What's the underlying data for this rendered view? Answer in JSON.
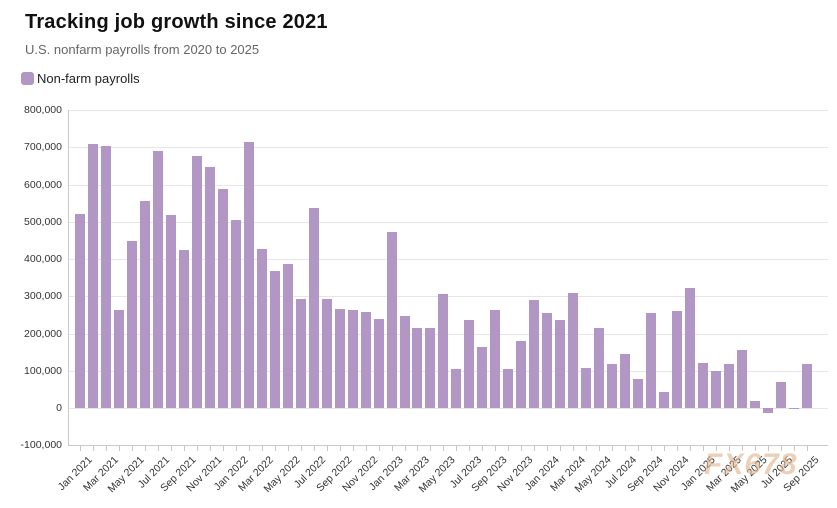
{
  "header": {
    "title": "Tracking job growth since 2021",
    "subtitle": "U.S. nonfarm payrolls from 2020 to 2025"
  },
  "legend": {
    "label": "Non-farm payrolls"
  },
  "watermark": "FX678",
  "colors": {
    "bar": "#b297c5",
    "grid": "#e6e6e6",
    "axis": "#c9c9c9",
    "watermark": "#e2b289"
  },
  "chart_data": {
    "type": "bar",
    "title": "Tracking job growth since 2021",
    "subtitle": "U.S. nonfarm payrolls from 2020 to 2025",
    "xlabel": "",
    "ylabel": "",
    "ylim": [
      -100000,
      800000
    ],
    "ytick_step": 100000,
    "x_label_every": 2,
    "grid": true,
    "legend_position": "top-left",
    "bar_color": "#b297c5",
    "categories": [
      "Jan 2021",
      "Feb 2021",
      "Mar 2021",
      "Apr 2021",
      "May 2021",
      "Jun 2021",
      "Jul 2021",
      "Aug 2021",
      "Sep 2021",
      "Oct 2021",
      "Nov 2021",
      "Dec 2021",
      "Jan 2022",
      "Feb 2022",
      "Mar 2022",
      "Apr 2022",
      "May 2022",
      "Jun 2022",
      "Jul 2022",
      "Aug 2022",
      "Sep 2022",
      "Oct 2022",
      "Nov 2022",
      "Dec 2022",
      "Jan 2023",
      "Feb 2023",
      "Mar 2023",
      "Apr 2023",
      "May 2023",
      "Jun 2023",
      "Jul 2023",
      "Aug 2023",
      "Sep 2023",
      "Oct 2023",
      "Nov 2023",
      "Dec 2023",
      "Jan 2024",
      "Feb 2024",
      "Mar 2024",
      "Apr 2024",
      "May 2024",
      "Jun 2024",
      "Jul 2024",
      "Aug 2024",
      "Sep 2024",
      "Oct 2024",
      "Nov 2024",
      "Dec 2024",
      "Jan 2025",
      "Feb 2025",
      "Mar 2025",
      "Apr 2025",
      "May 2025",
      "Jun 2025",
      "Jul 2025",
      "Aug 2025",
      "Sep 2025"
    ],
    "series": [
      {
        "name": "Non-farm payrolls",
        "values": [
          520000,
          710000,
          704000,
          263000,
          447000,
          557000,
          689000,
          517000,
          424000,
          677000,
          647000,
          588000,
          504000,
          714000,
          428000,
          368000,
          386000,
          293000,
          537000,
          292000,
          265000,
          262000,
          258000,
          239000,
          472000,
          247000,
          216000,
          216000,
          306000,
          104000,
          236000,
          164000,
          263000,
          104000,
          181000,
          290000,
          256000,
          236000,
          310000,
          108000,
          216000,
          118000,
          144000,
          78000,
          255000,
          44000,
          261000,
          322000,
          122000,
          100000,
          118000,
          157000,
          19000,
          -13000,
          71000,
          -4000,
          119000
        ]
      }
    ]
  }
}
